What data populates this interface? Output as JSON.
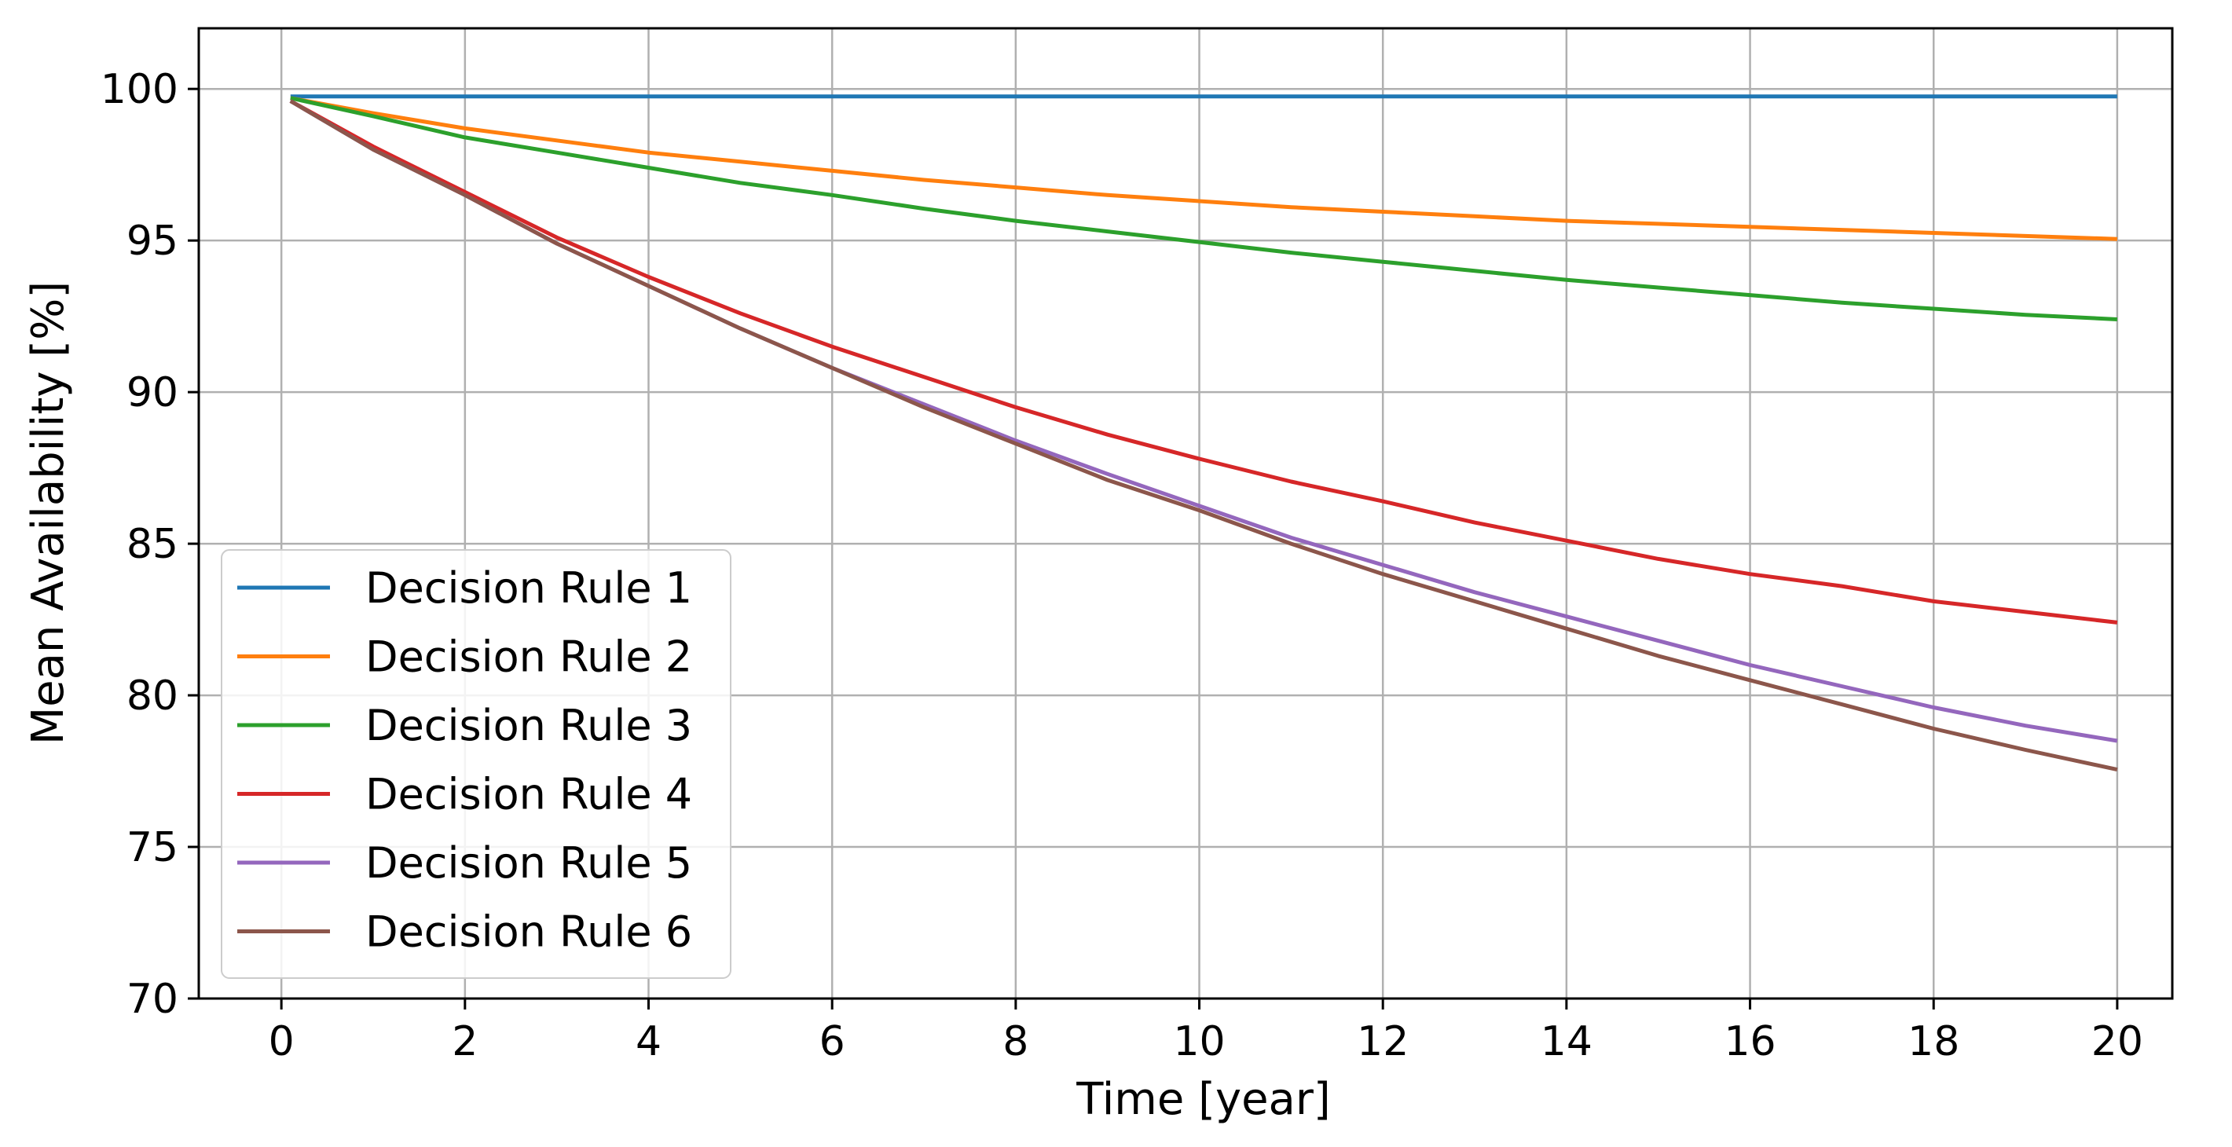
{
  "chart_data": {
    "type": "line",
    "title": "",
    "xlabel": "Time [year]",
    "ylabel": "Mean Availability [%]",
    "xlim": [
      -0.9,
      20.6
    ],
    "ylim": [
      70,
      102
    ],
    "xticks": [
      0,
      2,
      4,
      6,
      8,
      10,
      12,
      14,
      16,
      18,
      20
    ],
    "yticks": [
      70,
      75,
      80,
      85,
      90,
      95,
      100
    ],
    "grid": true,
    "legend_position": "lower-left",
    "x": [
      0.1,
      1,
      2,
      3,
      4,
      5,
      6,
      7,
      8,
      9,
      10,
      11,
      12,
      13,
      14,
      15,
      16,
      17,
      18,
      19,
      20
    ],
    "series": [
      {
        "name": "Decision Rule 1",
        "color": "#1f77b4",
        "values": [
          99.75,
          99.75,
          99.75,
          99.75,
          99.75,
          99.75,
          99.75,
          99.75,
          99.75,
          99.75,
          99.75,
          99.75,
          99.75,
          99.75,
          99.75,
          99.75,
          99.75,
          99.75,
          99.75,
          99.75,
          99.75
        ]
      },
      {
        "name": "Decision Rule 2",
        "color": "#ff7f0e",
        "values": [
          99.7,
          99.2,
          98.7,
          98.3,
          97.9,
          97.6,
          97.3,
          97.0,
          96.75,
          96.5,
          96.3,
          96.1,
          95.95,
          95.8,
          95.65,
          95.55,
          95.45,
          95.35,
          95.25,
          95.15,
          95.05
        ]
      },
      {
        "name": "Decision Rule 3",
        "color": "#2ca02c",
        "values": [
          99.7,
          99.1,
          98.4,
          97.9,
          97.4,
          96.9,
          96.5,
          96.05,
          95.65,
          95.3,
          94.95,
          94.6,
          94.3,
          94.0,
          93.7,
          93.45,
          93.2,
          92.95,
          92.75,
          92.55,
          92.4
        ]
      },
      {
        "name": "Decision Rule 4",
        "color": "#d62728",
        "values": [
          99.6,
          98.1,
          96.6,
          95.1,
          93.8,
          92.6,
          91.5,
          90.5,
          89.5,
          88.6,
          87.8,
          87.05,
          86.4,
          85.7,
          85.1,
          84.5,
          84.0,
          83.6,
          83.1,
          82.75,
          82.4
        ]
      },
      {
        "name": "Decision Rule 5",
        "color": "#9467bd",
        "values": [
          99.6,
          98.0,
          96.5,
          94.9,
          93.5,
          92.1,
          90.8,
          89.6,
          88.4,
          87.3,
          86.25,
          85.2,
          84.3,
          83.4,
          82.6,
          81.8,
          81.0,
          80.3,
          79.6,
          79.0,
          78.5
        ]
      },
      {
        "name": "Decision Rule 6",
        "color": "#8c564b",
        "values": [
          99.6,
          98.0,
          96.5,
          94.9,
          93.5,
          92.1,
          90.8,
          89.5,
          88.3,
          87.1,
          86.1,
          85.0,
          84.0,
          83.1,
          82.2,
          81.3,
          80.5,
          79.7,
          78.9,
          78.2,
          77.55
        ]
      }
    ]
  }
}
